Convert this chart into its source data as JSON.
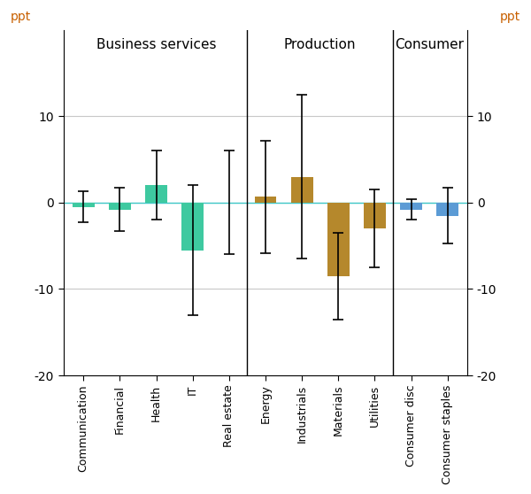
{
  "categories": [
    "Communication",
    "Financial",
    "Health",
    "IT",
    "Real estate",
    "Energy",
    "Industrials",
    "Materials",
    "Utilities",
    "Consumer disc",
    "Consumer staples"
  ],
  "bar_values": [
    -0.5,
    -0.8,
    2.0,
    -5.5,
    0.0,
    0.7,
    3.0,
    -8.5,
    -3.0,
    -0.8,
    -1.5
  ],
  "err_lower": [
    1.8,
    2.5,
    4.0,
    7.5,
    6.0,
    6.5,
    9.5,
    5.0,
    4.5,
    1.2,
    3.2
  ],
  "err_upper": [
    1.8,
    2.5,
    4.0,
    7.5,
    6.0,
    6.5,
    9.5,
    5.0,
    4.5,
    1.2,
    3.2
  ],
  "bar_colors": [
    "#3ec9a0",
    "#3ec9a0",
    "#3ec9a0",
    "#3ec9a0",
    "#3ec9a0",
    "#b5882c",
    "#b5882c",
    "#b5882c",
    "#b5882c",
    "#5b9bd5",
    "#5b9bd5"
  ],
  "group_dividers": [
    4.5,
    8.5
  ],
  "group_labels": [
    {
      "text": "Business services",
      "x": 2.0
    },
    {
      "text": "Production",
      "x": 6.5
    },
    {
      "text": "Consumer",
      "x": 9.5
    }
  ],
  "ylim": [
    -20,
    20
  ],
  "yticks": [
    -20,
    -10,
    0,
    10
  ],
  "ylabel": "ppt",
  "ylabel_color": "#c86000",
  "tick_color": "black",
  "zero_line_color": "#40c8c8",
  "background_color": "#ffffff",
  "grid_color": "#c8c8c8",
  "bar_width": 0.6,
  "n_cats": 11,
  "figsize": [
    6.0,
    5.58
  ],
  "dpi": 100
}
